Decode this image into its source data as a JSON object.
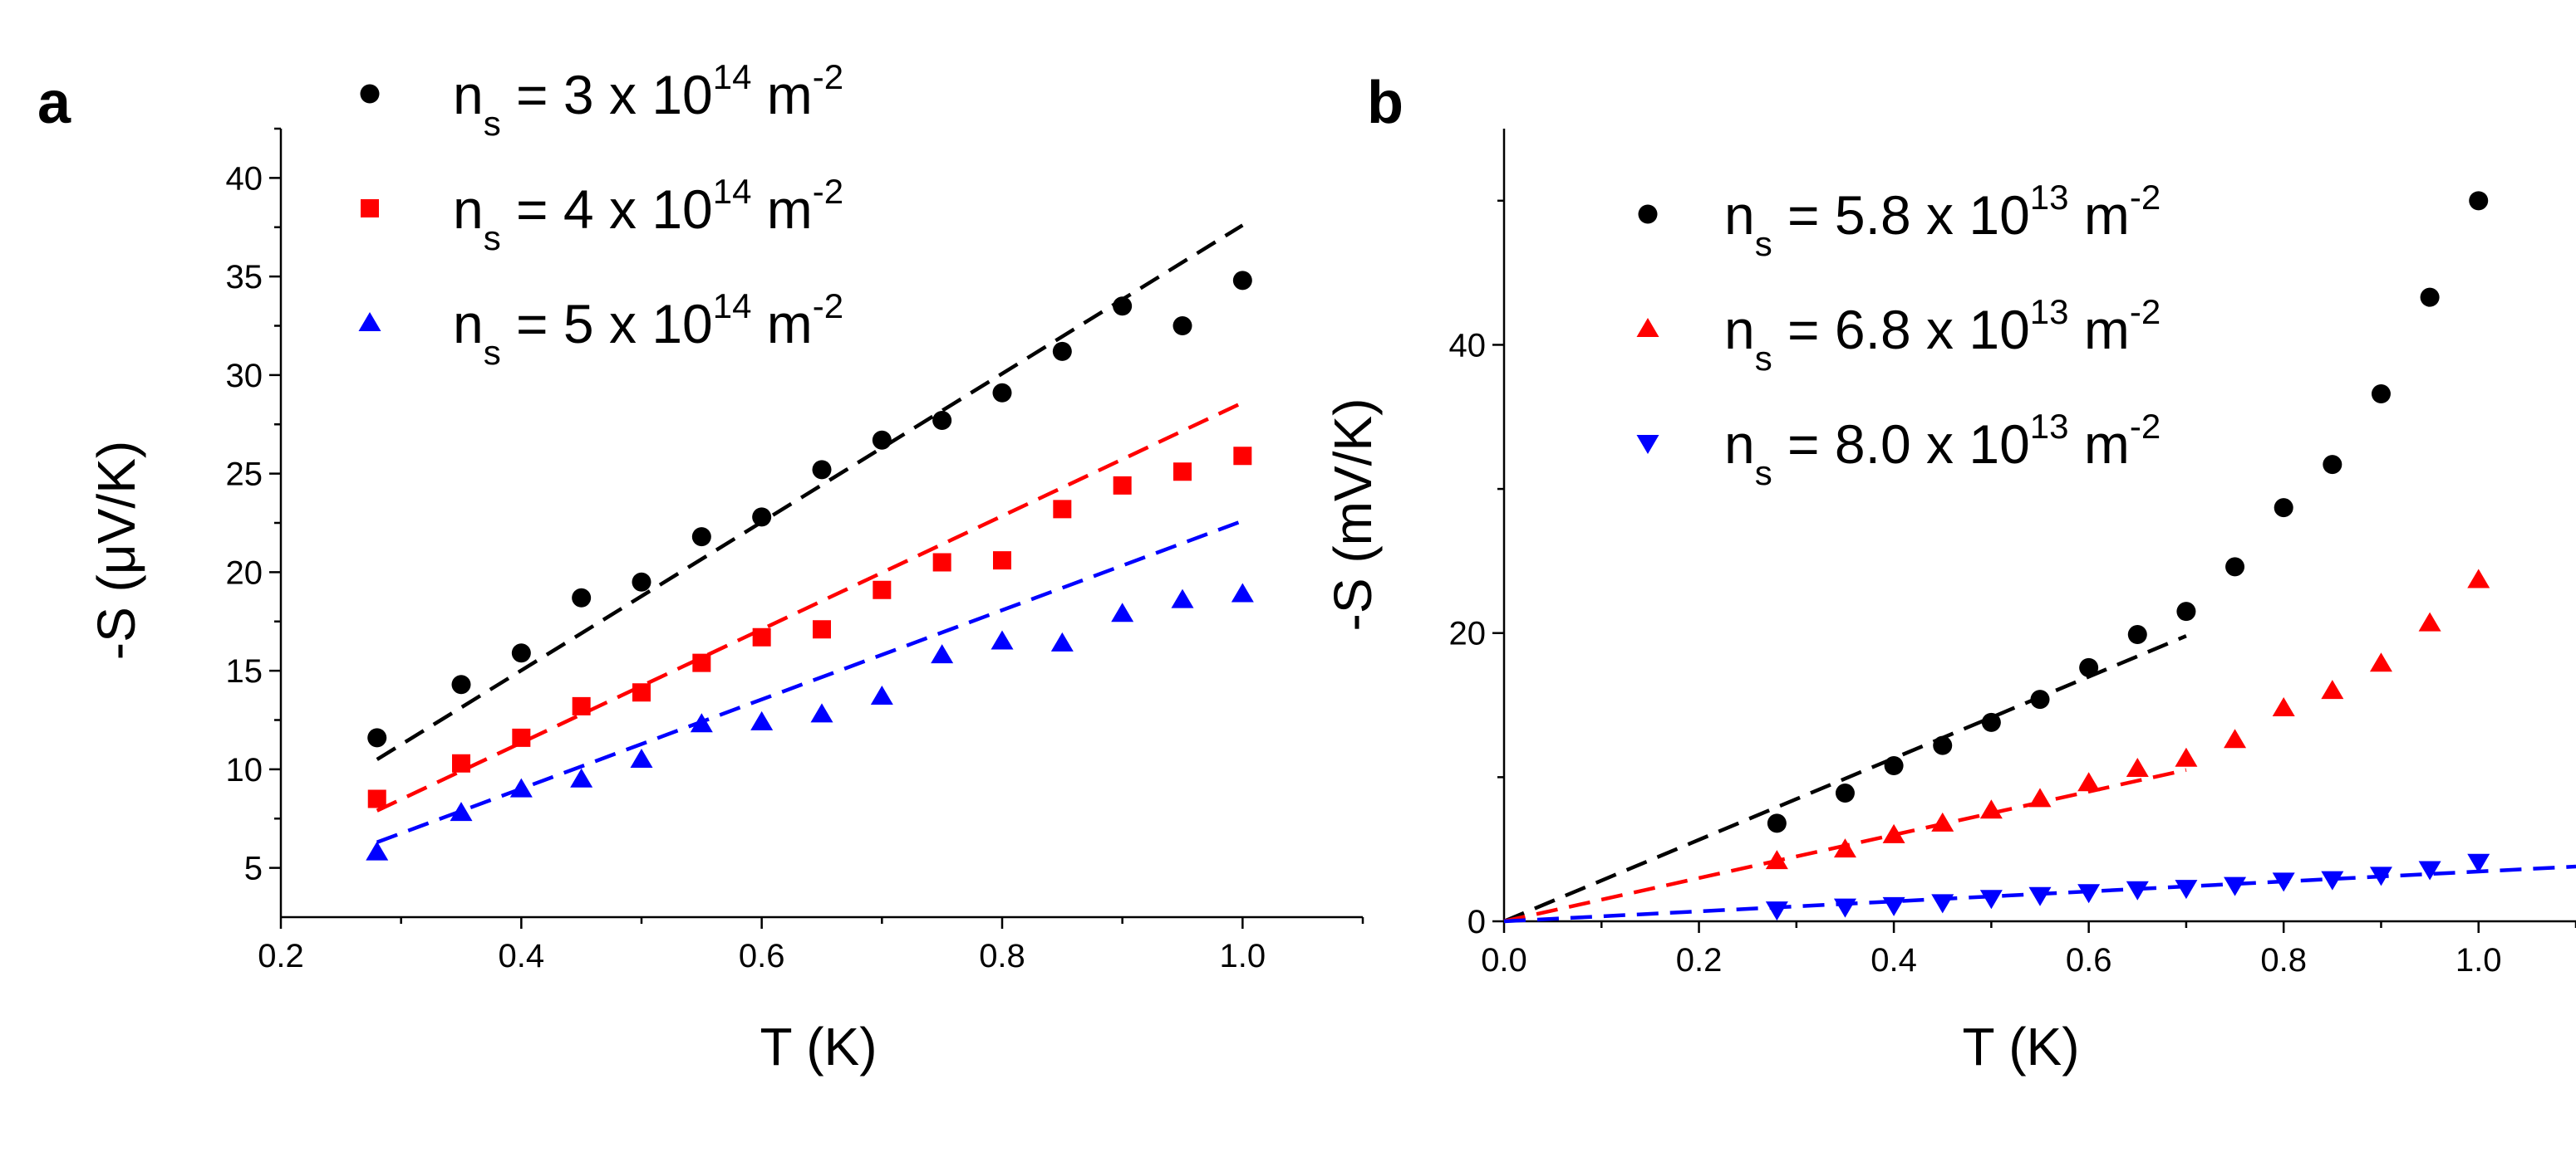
{
  "chart_data": [
    {
      "panel": "a",
      "type": "scatter",
      "xlabel": "T (K)",
      "ylabel": "-S (μV/K)",
      "xlim": [
        0.2,
        1.1
      ],
      "ylim": [
        2.5,
        42.5
      ],
      "xticks": [
        0.2,
        0.4,
        0.6,
        0.8,
        1.0
      ],
      "xtick_labels": [
        "0.2",
        "0.4",
        "0.6",
        "0.8",
        "1.0"
      ],
      "yticks": [
        5,
        10,
        15,
        20,
        25,
        30,
        35,
        40
      ],
      "ytick_labels": [
        "5",
        "10",
        "15",
        "20",
        "25",
        "30",
        "35",
        "40"
      ],
      "legend_position": "top-left",
      "series": [
        {
          "name": "n_s = 3 x 10^14 m^-2",
          "legend": {
            "base": "n",
            "sub": "s",
            "mid": " = 3 x 10",
            "sup1": "14",
            "unit": " m",
            "sup2": "-2"
          },
          "color": "#000000",
          "marker": "circle",
          "x": [
            0.28,
            0.35,
            0.4,
            0.45,
            0.5,
            0.55,
            0.6,
            0.65,
            0.7,
            0.75,
            0.8,
            0.85,
            0.9,
            0.95,
            1.0
          ],
          "y": [
            11.6,
            14.3,
            15.9,
            18.7,
            19.5,
            21.8,
            22.8,
            25.2,
            26.7,
            27.7,
            29.1,
            31.2,
            33.5,
            32.5,
            34.8
          ],
          "fit": {
            "x": [
              0.28,
              1.0
            ],
            "y": [
              10.5,
              37.6
            ]
          }
        },
        {
          "name": "n_s = 4 x 10^14 m^-2",
          "legend": {
            "base": "n",
            "sub": "s",
            "mid": " = 4 x 10",
            "sup1": "14",
            "unit": " m",
            "sup2": "-2"
          },
          "color": "#ff0000",
          "marker": "square",
          "x": [
            0.28,
            0.35,
            0.4,
            0.45,
            0.5,
            0.55,
            0.6,
            0.65,
            0.7,
            0.75,
            0.8,
            0.85,
            0.9,
            0.95,
            1.0
          ],
          "y": [
            8.5,
            10.3,
            11.6,
            13.2,
            13.9,
            15.4,
            16.7,
            17.1,
            19.1,
            20.5,
            20.6,
            23.2,
            24.4,
            25.1,
            25.9
          ],
          "fit": {
            "x": [
              0.28,
              1.0
            ],
            "y": [
              7.9,
              28.6
            ]
          }
        },
        {
          "name": "n_s = 5 x 10^14 m^-2",
          "legend": {
            "base": "n",
            "sub": "s",
            "mid": " = 5 x 10",
            "sup1": "14",
            "unit": " m",
            "sup2": "-2"
          },
          "color": "#0000ff",
          "marker": "triangle-up",
          "x": [
            0.28,
            0.35,
            0.4,
            0.45,
            0.5,
            0.55,
            0.6,
            0.65,
            0.7,
            0.75,
            0.8,
            0.85,
            0.9,
            0.95,
            1.0
          ],
          "y": [
            5.8,
            7.8,
            9.0,
            9.5,
            10.5,
            12.3,
            12.4,
            12.8,
            13.7,
            15.8,
            16.5,
            16.4,
            17.9,
            18.6,
            18.9
          ],
          "fit": {
            "x": [
              0.28,
              1.0
            ],
            "y": [
              6.3,
              22.6
            ]
          }
        }
      ]
    },
    {
      "panel": "b",
      "type": "scatter",
      "xlabel": "T (K)",
      "ylabel": "-S (mV/K)",
      "xlim": [
        0.0,
        1.1
      ],
      "ylim": [
        0,
        55
      ],
      "xticks": [
        0.0,
        0.2,
        0.4,
        0.6,
        0.8,
        1.0
      ],
      "xtick_labels": [
        "0.0",
        "0.2",
        "0.4",
        "0.6",
        "0.8",
        "1.0"
      ],
      "yticks": [
        0,
        20,
        40
      ],
      "ytick_labels": [
        "0",
        "20",
        "40"
      ],
      "legend_position": "top-left",
      "series": [
        {
          "name": "n_s = 5.8 x 10^13 m^-2",
          "legend": {
            "base": "n",
            "sub": "s",
            "mid": " = 5.8 x 10",
            "sup1": "13",
            "unit": " m",
            "sup2": "-2"
          },
          "color": "#000000",
          "marker": "circle",
          "x": [
            0.28,
            0.35,
            0.4,
            0.45,
            0.5,
            0.55,
            0.6,
            0.65,
            0.7,
            0.75,
            0.8,
            0.85,
            0.9,
            0.95,
            1.0
          ],
          "y": [
            6.8,
            8.9,
            10.8,
            12.2,
            13.8,
            15.4,
            17.6,
            19.9,
            21.5,
            24.6,
            28.7,
            31.7,
            36.6,
            43.3,
            50.0
          ],
          "fit": {
            "x": [
              0.0,
              0.7
            ],
            "y": [
              0.0,
              19.8
            ]
          }
        },
        {
          "name": "n_s = 6.8 x 10^13 m^-2",
          "legend": {
            "base": "n",
            "sub": "s",
            "mid": " = 6.8 x 10",
            "sup1": "13",
            "unit": " m",
            "sup2": "-2"
          },
          "color": "#ff0000",
          "marker": "triangle-up",
          "x": [
            0.28,
            0.35,
            0.4,
            0.45,
            0.5,
            0.55,
            0.6,
            0.65,
            0.7,
            0.75,
            0.8,
            0.85,
            0.9,
            0.95,
            1.0
          ],
          "y": [
            4.2,
            5.0,
            6.0,
            6.8,
            7.7,
            8.5,
            9.6,
            10.6,
            11.3,
            12.6,
            14.8,
            16.0,
            17.9,
            20.7,
            23.7
          ],
          "fit": {
            "x": [
              0.0,
              0.7
            ],
            "y": [
              0.0,
              10.5
            ]
          }
        },
        {
          "name": "n_s = 8.0 x 10^13 m^-2",
          "legend": {
            "base": "n",
            "sub": "s",
            "mid": " = 8.0 x 10",
            "sup1": "13",
            "unit": " m",
            "sup2": "-2"
          },
          "color": "#0000ff",
          "marker": "triangle-down",
          "x": [
            0.28,
            0.35,
            0.4,
            0.45,
            0.5,
            0.55,
            0.6,
            0.65,
            0.7,
            0.75,
            0.8,
            0.85,
            0.9,
            0.95,
            1.0
          ],
          "y": [
            0.8,
            1.0,
            1.1,
            1.3,
            1.6,
            1.8,
            2.0,
            2.2,
            2.3,
            2.5,
            2.8,
            2.9,
            3.2,
            3.6,
            4.1
          ],
          "fit": {
            "x": [
              0.0,
              1.1
            ],
            "y": [
              0.0,
              3.8
            ]
          }
        }
      ]
    }
  ]
}
